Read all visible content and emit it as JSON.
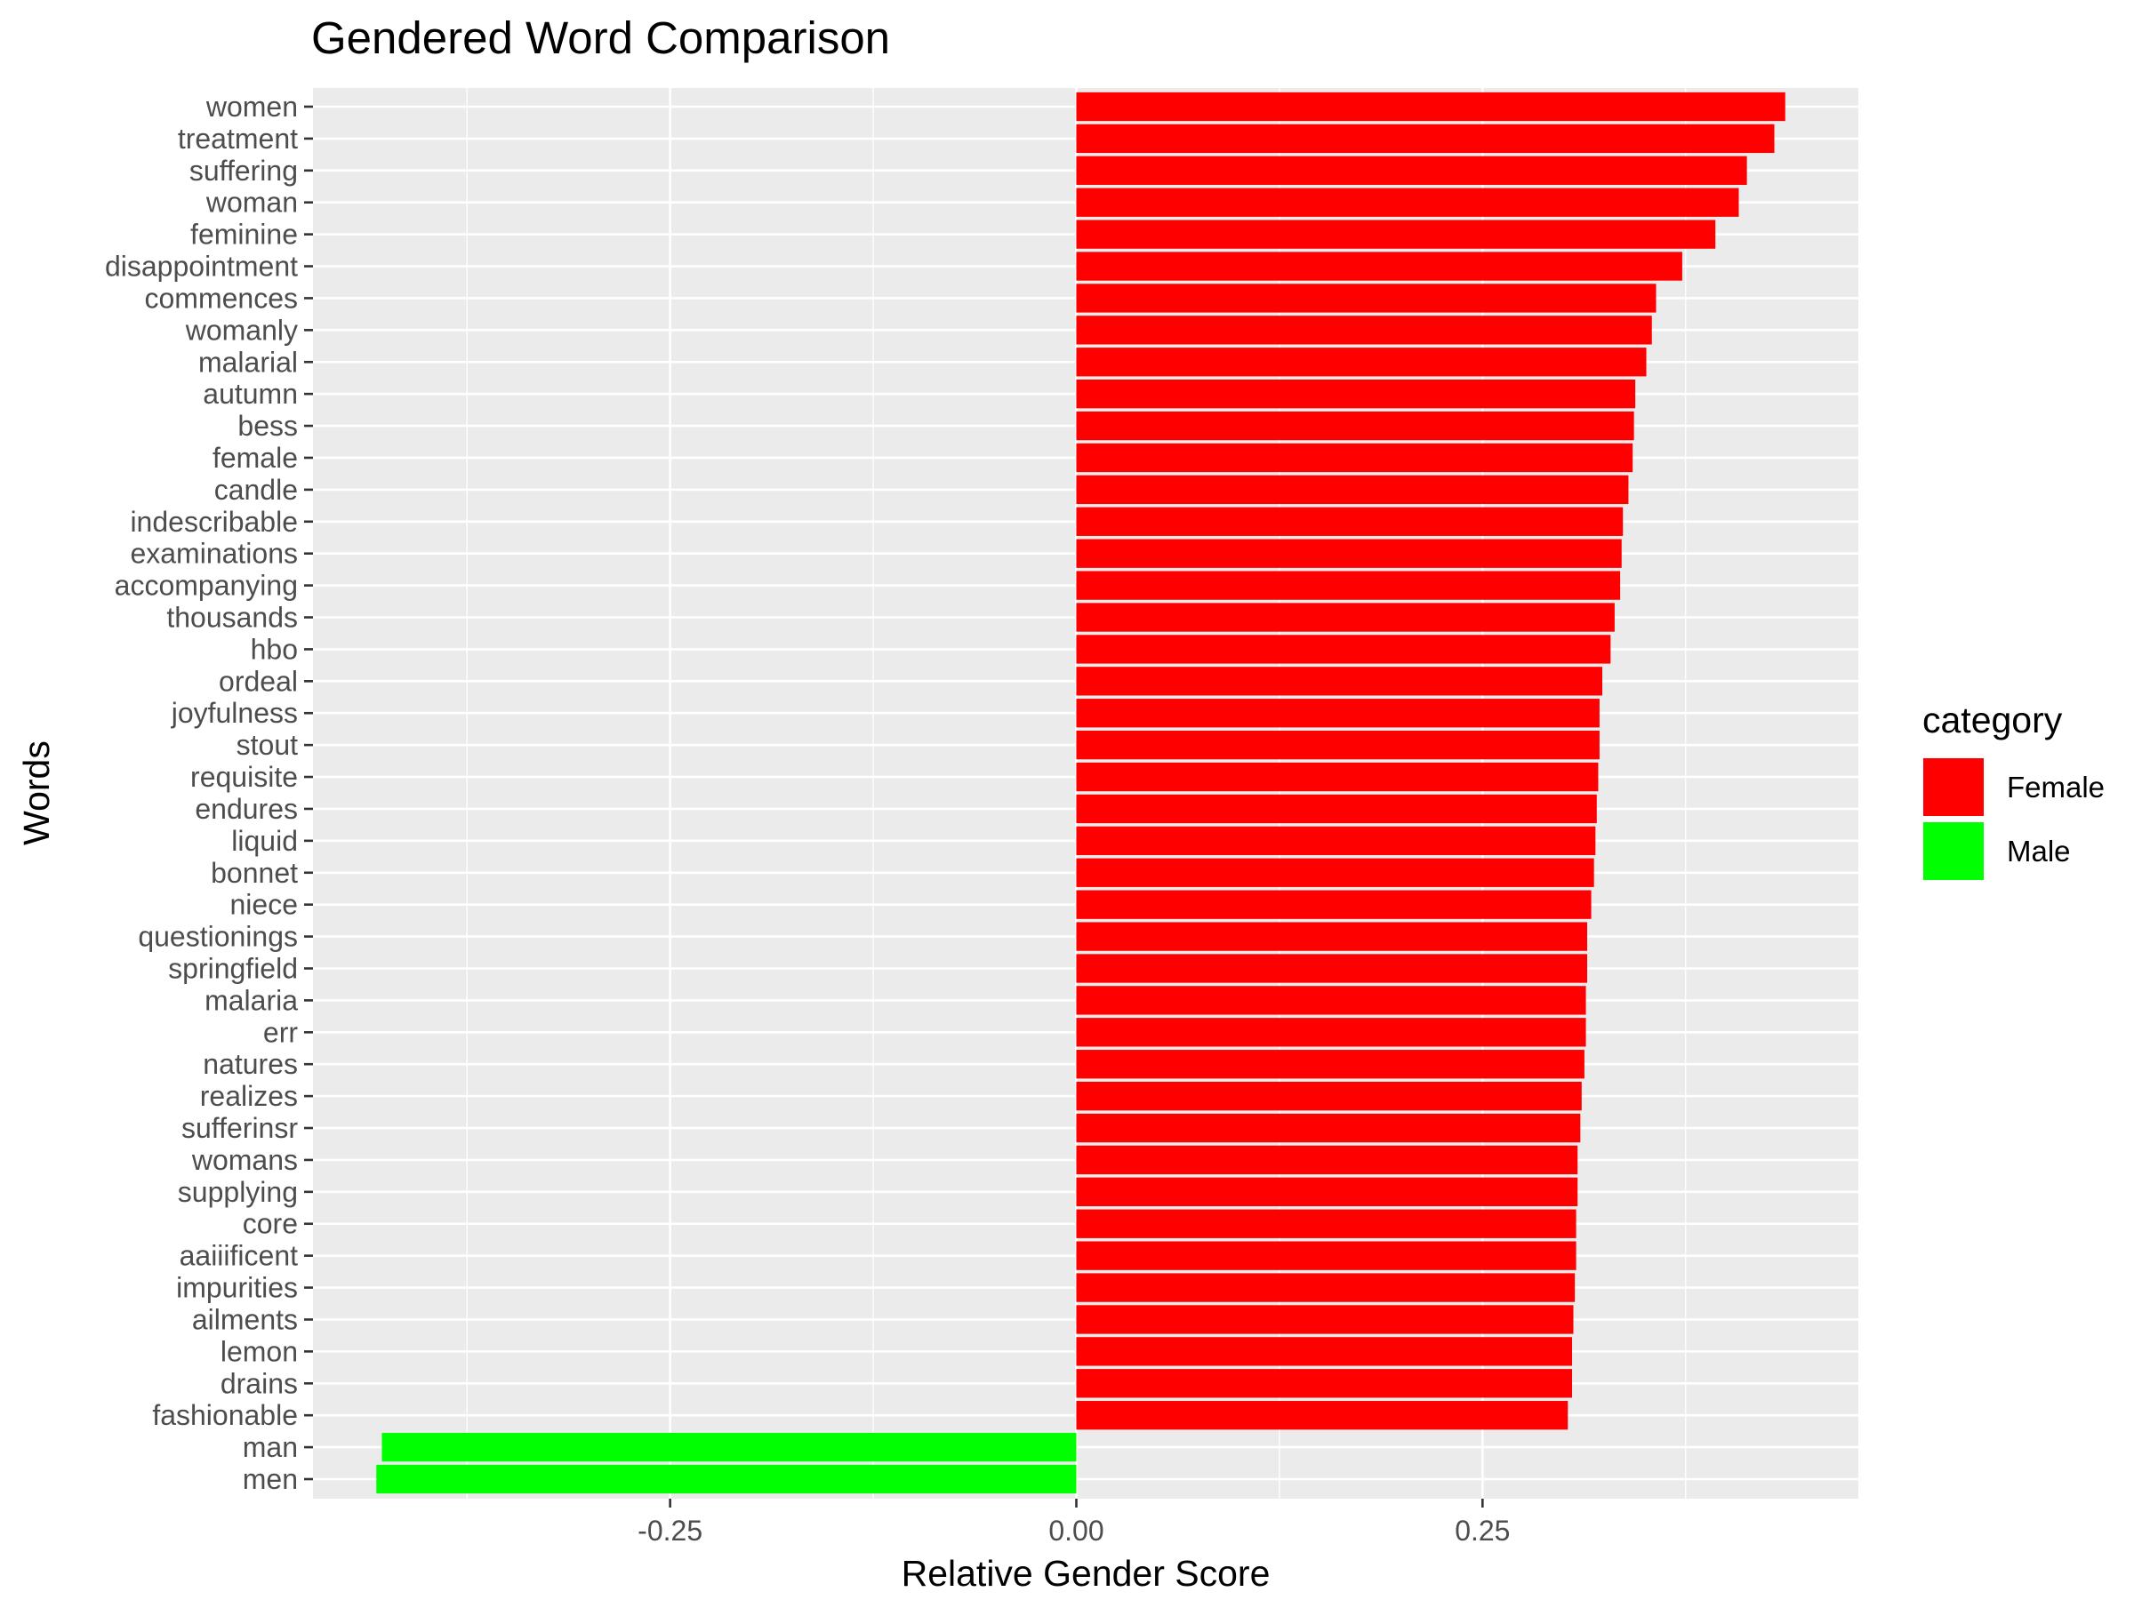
{
  "chart_data": {
    "type": "bar",
    "orientation": "horizontal",
    "title": "Gendered Word Comparison",
    "xlabel": "Relative Gender Score",
    "ylabel": "Words",
    "xlim": [
      -0.4698,
      0.4813
    ],
    "xticks": [
      -0.25,
      0.0,
      0.25
    ],
    "xtick_labels": [
      "-0.25",
      "0.00",
      "0.25"
    ],
    "grid": true,
    "legend": {
      "title": "category",
      "placement": "right",
      "entries": [
        {
          "label": "Female",
          "color": "#ff0000"
        },
        {
          "label": "Male",
          "color": "#00ff00"
        }
      ]
    },
    "categories": [
      "women",
      "treatment",
      "suffering",
      "woman",
      "feminine",
      "disappointment",
      "commences",
      "womanly",
      "malarial",
      "autumn",
      "bess",
      "female",
      "candle",
      "indescribable",
      "examinations",
      "accompanying",
      "thousands",
      "hbo",
      "ordeal",
      "joyfulness",
      "stout",
      "requisite",
      "endures",
      "liquid",
      "bonnet",
      "niece",
      "questionings",
      "springfield",
      "malaria",
      "err",
      "natures",
      "realizes",
      "sufferinsr",
      "womans",
      "supplying",
      "core",
      "aaiiificent",
      "impurities",
      "ailments",
      "lemon",
      "drains",
      "fashionable",
      "man",
      "men"
    ],
    "values": [
      0.4363,
      0.4296,
      0.4127,
      0.4077,
      0.3933,
      0.3729,
      0.3568,
      0.3542,
      0.3508,
      0.344,
      0.3432,
      0.3424,
      0.3398,
      0.3364,
      0.3356,
      0.3347,
      0.3313,
      0.3288,
      0.3237,
      0.322,
      0.322,
      0.3212,
      0.3203,
      0.3195,
      0.3186,
      0.3169,
      0.3144,
      0.3144,
      0.3136,
      0.3136,
      0.3127,
      0.311,
      0.3102,
      0.3085,
      0.3085,
      0.3076,
      0.3076,
      0.3068,
      0.3059,
      0.3051,
      0.3051,
      0.3025,
      -0.4274,
      -0.4308
    ],
    "series_category": [
      "Female",
      "Female",
      "Female",
      "Female",
      "Female",
      "Female",
      "Female",
      "Female",
      "Female",
      "Female",
      "Female",
      "Female",
      "Female",
      "Female",
      "Female",
      "Female",
      "Female",
      "Female",
      "Female",
      "Female",
      "Female",
      "Female",
      "Female",
      "Female",
      "Female",
      "Female",
      "Female",
      "Female",
      "Female",
      "Female",
      "Female",
      "Female",
      "Female",
      "Female",
      "Female",
      "Female",
      "Female",
      "Female",
      "Female",
      "Female",
      "Female",
      "Female",
      "Male",
      "Male"
    ]
  }
}
